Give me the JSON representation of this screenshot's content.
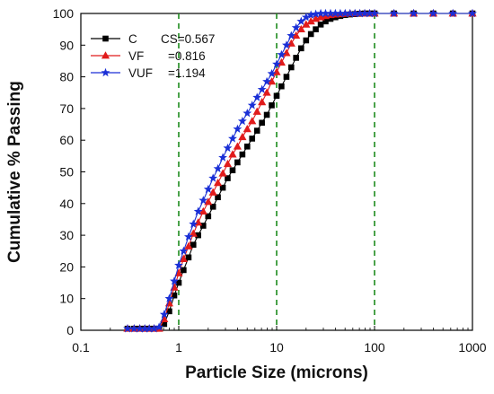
{
  "chart_data": {
    "type": "line",
    "xlabel": "Particle Size (microns)",
    "ylabel": "Cumulative % Passing",
    "xscale": "log",
    "xlim": [
      0.1,
      1000
    ],
    "ylim": [
      0,
      100
    ],
    "x_ticks": [
      "0.1",
      "1",
      "10",
      "100",
      "1000"
    ],
    "y_ticks": [
      "0",
      "10",
      "20",
      "30",
      "40",
      "50",
      "60",
      "70",
      "80",
      "90",
      "100"
    ],
    "reference_lines_x": [
      1,
      10,
      100
    ],
    "reference_line_color": "#1e8c1e",
    "grid": false,
    "legend_position": "top-left",
    "series": [
      {
        "name": "C",
        "cs_label": "CS=0.567",
        "marker": "square",
        "color": "#000000",
        "x": [
          0.3,
          0.35,
          0.4,
          0.45,
          0.5,
          0.56,
          0.63,
          0.71,
          0.8,
          0.9,
          1.0,
          1.12,
          1.26,
          1.41,
          1.58,
          1.78,
          2.0,
          2.24,
          2.51,
          2.82,
          3.16,
          3.55,
          3.98,
          4.47,
          5.01,
          5.62,
          6.31,
          7.08,
          7.94,
          8.91,
          10.0,
          11.2,
          12.6,
          14.1,
          15.8,
          17.8,
          20.0,
          22.4,
          25.1,
          28.2,
          31.6,
          35.5,
          39.8,
          44.7,
          50.1,
          56.2,
          63.1,
          70.8,
          79.4,
          89.1,
          100,
          158,
          251,
          398,
          631,
          1000
        ],
        "y": [
          0.5,
          0.5,
          0.5,
          0.5,
          0.5,
          0.5,
          0.5,
          2,
          6,
          11,
          15,
          19,
          23,
          27,
          30,
          33,
          36,
          39,
          42,
          45,
          48,
          50.5,
          53,
          55.5,
          58,
          60.5,
          63,
          65.5,
          68,
          71,
          74,
          77,
          80,
          83,
          86,
          89,
          91.5,
          93.5,
          95,
          96.5,
          97.5,
          98.3,
          98.8,
          99.2,
          99.5,
          99.7,
          99.8,
          99.9,
          100,
          100,
          100,
          100,
          100,
          100,
          100,
          100
        ]
      },
      {
        "name": "VF",
        "cs_label": "=0.816",
        "marker": "triangle",
        "color": "#e11b1b",
        "x": [
          0.3,
          0.35,
          0.4,
          0.45,
          0.5,
          0.56,
          0.63,
          0.71,
          0.8,
          0.9,
          1.0,
          1.12,
          1.26,
          1.41,
          1.58,
          1.78,
          2.0,
          2.24,
          2.51,
          2.82,
          3.16,
          3.55,
          3.98,
          4.47,
          5.01,
          5.62,
          6.31,
          7.08,
          7.94,
          8.91,
          10.0,
          11.2,
          12.6,
          14.1,
          15.8,
          17.8,
          20.0,
          22.4,
          25.1,
          28.2,
          31.6,
          35.5,
          39.8,
          44.7,
          50.1,
          56.2,
          63.1,
          70.8,
          79.4,
          89.1,
          100,
          158,
          251,
          398,
          631,
          1000
        ],
        "y": [
          0.5,
          0.5,
          0.5,
          0.5,
          0.5,
          0.5,
          0.5,
          3.5,
          8.5,
          13.5,
          18,
          22.5,
          26.5,
          30.5,
          34,
          37.5,
          40.5,
          43.5,
          46.5,
          49.5,
          52.5,
          55.5,
          58,
          61,
          63.5,
          66,
          69,
          72,
          75,
          78.5,
          81.5,
          84.5,
          87.5,
          90.5,
          93,
          95,
          96.5,
          97.5,
          98.3,
          98.8,
          99.2,
          99.5,
          99.7,
          99.8,
          99.9,
          100,
          100,
          100,
          100,
          100,
          100,
          100,
          100,
          100,
          100,
          100
        ]
      },
      {
        "name": "VUF",
        "cs_label": "=1.194",
        "marker": "star",
        "color": "#1a2fd6",
        "x": [
          0.3,
          0.35,
          0.4,
          0.45,
          0.5,
          0.56,
          0.63,
          0.71,
          0.8,
          0.9,
          1.0,
          1.12,
          1.26,
          1.41,
          1.58,
          1.78,
          2.0,
          2.24,
          2.51,
          2.82,
          3.16,
          3.55,
          3.98,
          4.47,
          5.01,
          5.62,
          6.31,
          7.08,
          7.94,
          8.91,
          10.0,
          11.2,
          12.6,
          14.1,
          15.8,
          17.8,
          20.0,
          22.4,
          25.1,
          28.2,
          31.6,
          35.5,
          39.8,
          44.7,
          50.1,
          56.2,
          63.1,
          70.8,
          79.4,
          89.1,
          100,
          158,
          251,
          398,
          631,
          1000
        ],
        "y": [
          0.5,
          0.5,
          0.5,
          0.5,
          0.5,
          0.5,
          1,
          5,
          10,
          15.5,
          20.5,
          25,
          29.5,
          33.5,
          37.5,
          41,
          44.5,
          48,
          51,
          54.5,
          57.5,
          60.5,
          63.5,
          66,
          68.5,
          71,
          73.5,
          76,
          78.5,
          81,
          84,
          87,
          90,
          93,
          95.5,
          97.5,
          98.8,
          99.5,
          99.8,
          100,
          100,
          100,
          100,
          100,
          100,
          100,
          100,
          100,
          100,
          100,
          100,
          100,
          100,
          100,
          100,
          100
        ]
      }
    ]
  }
}
